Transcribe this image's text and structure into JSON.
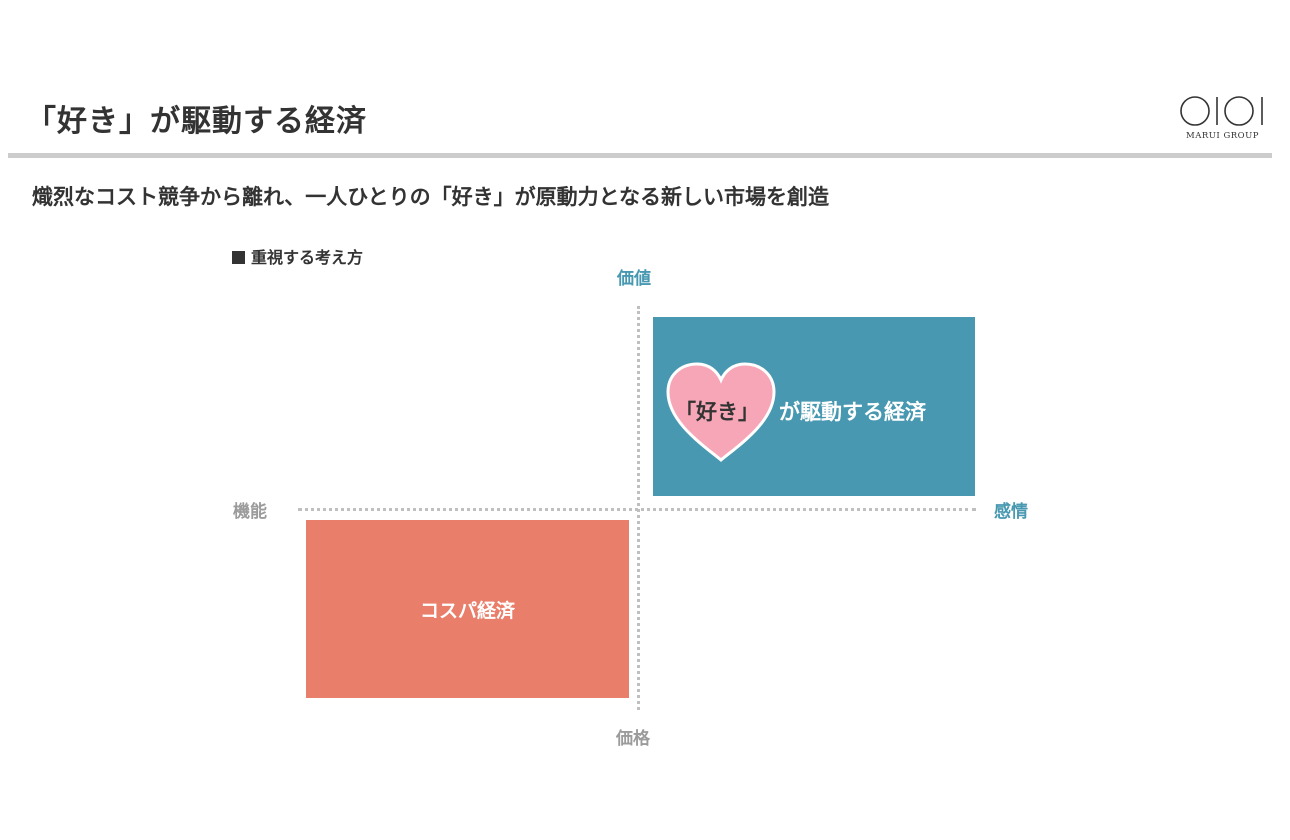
{
  "header": {
    "title": "「好き」が駆動する経済",
    "logo_text": "MARUI GROUP"
  },
  "subtitle": "熾烈なコスト競争から離れ、一人ひとりの「好き」が原動力となる新しい市場を創造",
  "section_label": "重視する考え方",
  "diagram": {
    "axis_top": "価値",
    "axis_bottom": "価格",
    "axis_left": "機能",
    "axis_right": "感情",
    "quadrant_top_right": {
      "heart_text": "「好き」",
      "text": "が駆動する経済"
    },
    "quadrant_bottom_left": {
      "text": "コスパ経済"
    }
  },
  "colors": {
    "value_blue": "#4798b0",
    "cost_red": "#e97e6a",
    "heart_pink": "#f6a6b7",
    "axis_gray": "#9b9b9b",
    "rule_gray": "#cccccc",
    "text_dark": "#333333"
  }
}
